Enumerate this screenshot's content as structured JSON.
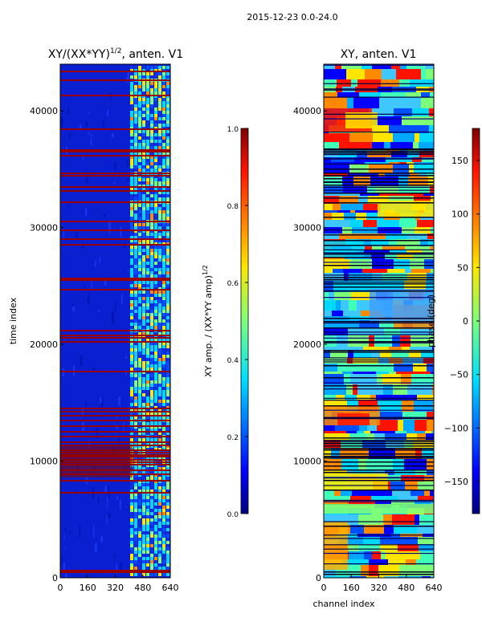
{
  "figure": {
    "suptitle": "2015-12-23 0.0-24.0"
  },
  "chart_data": [
    {
      "type": "heatmap",
      "title": "XY/(XX*YY)",
      "title_sup": "1/2",
      "title_suffix": ", anten. V1",
      "xlabel": "",
      "ylabel": "time index",
      "xlim": [
        0,
        640
      ],
      "ylim": [
        0,
        44000
      ],
      "xticks": [
        "0",
        "160",
        "320",
        "480",
        "640"
      ],
      "yticks": [
        "0",
        "10000",
        "20000",
        "30000",
        "40000"
      ],
      "colorbar": {
        "label": "XY amp. / (XX*YY amp)",
        "label_sup": "1/2",
        "range": [
          0.0,
          1.0
        ],
        "ticks": [
          "0.0",
          "0.2",
          "0.4",
          "0.6",
          "0.8",
          "1.0"
        ],
        "colormap": "jet"
      }
    },
    {
      "type": "heatmap",
      "title": "XY, anten. V1",
      "xlabel": "channel index",
      "ylabel": "",
      "xlim": [
        0,
        640
      ],
      "ylim": [
        0,
        44000
      ],
      "xticks": [
        "0",
        "160",
        "320",
        "480",
        "640"
      ],
      "yticks": [
        "0",
        "10000",
        "20000",
        "30000",
        "40000"
      ],
      "colorbar": {
        "label": "phase (deg)",
        "range": [
          -180,
          180
        ],
        "ticks": [
          "−150",
          "−100",
          "−50",
          "0",
          "50",
          "100",
          "150"
        ],
        "colormap": "jet"
      }
    }
  ]
}
